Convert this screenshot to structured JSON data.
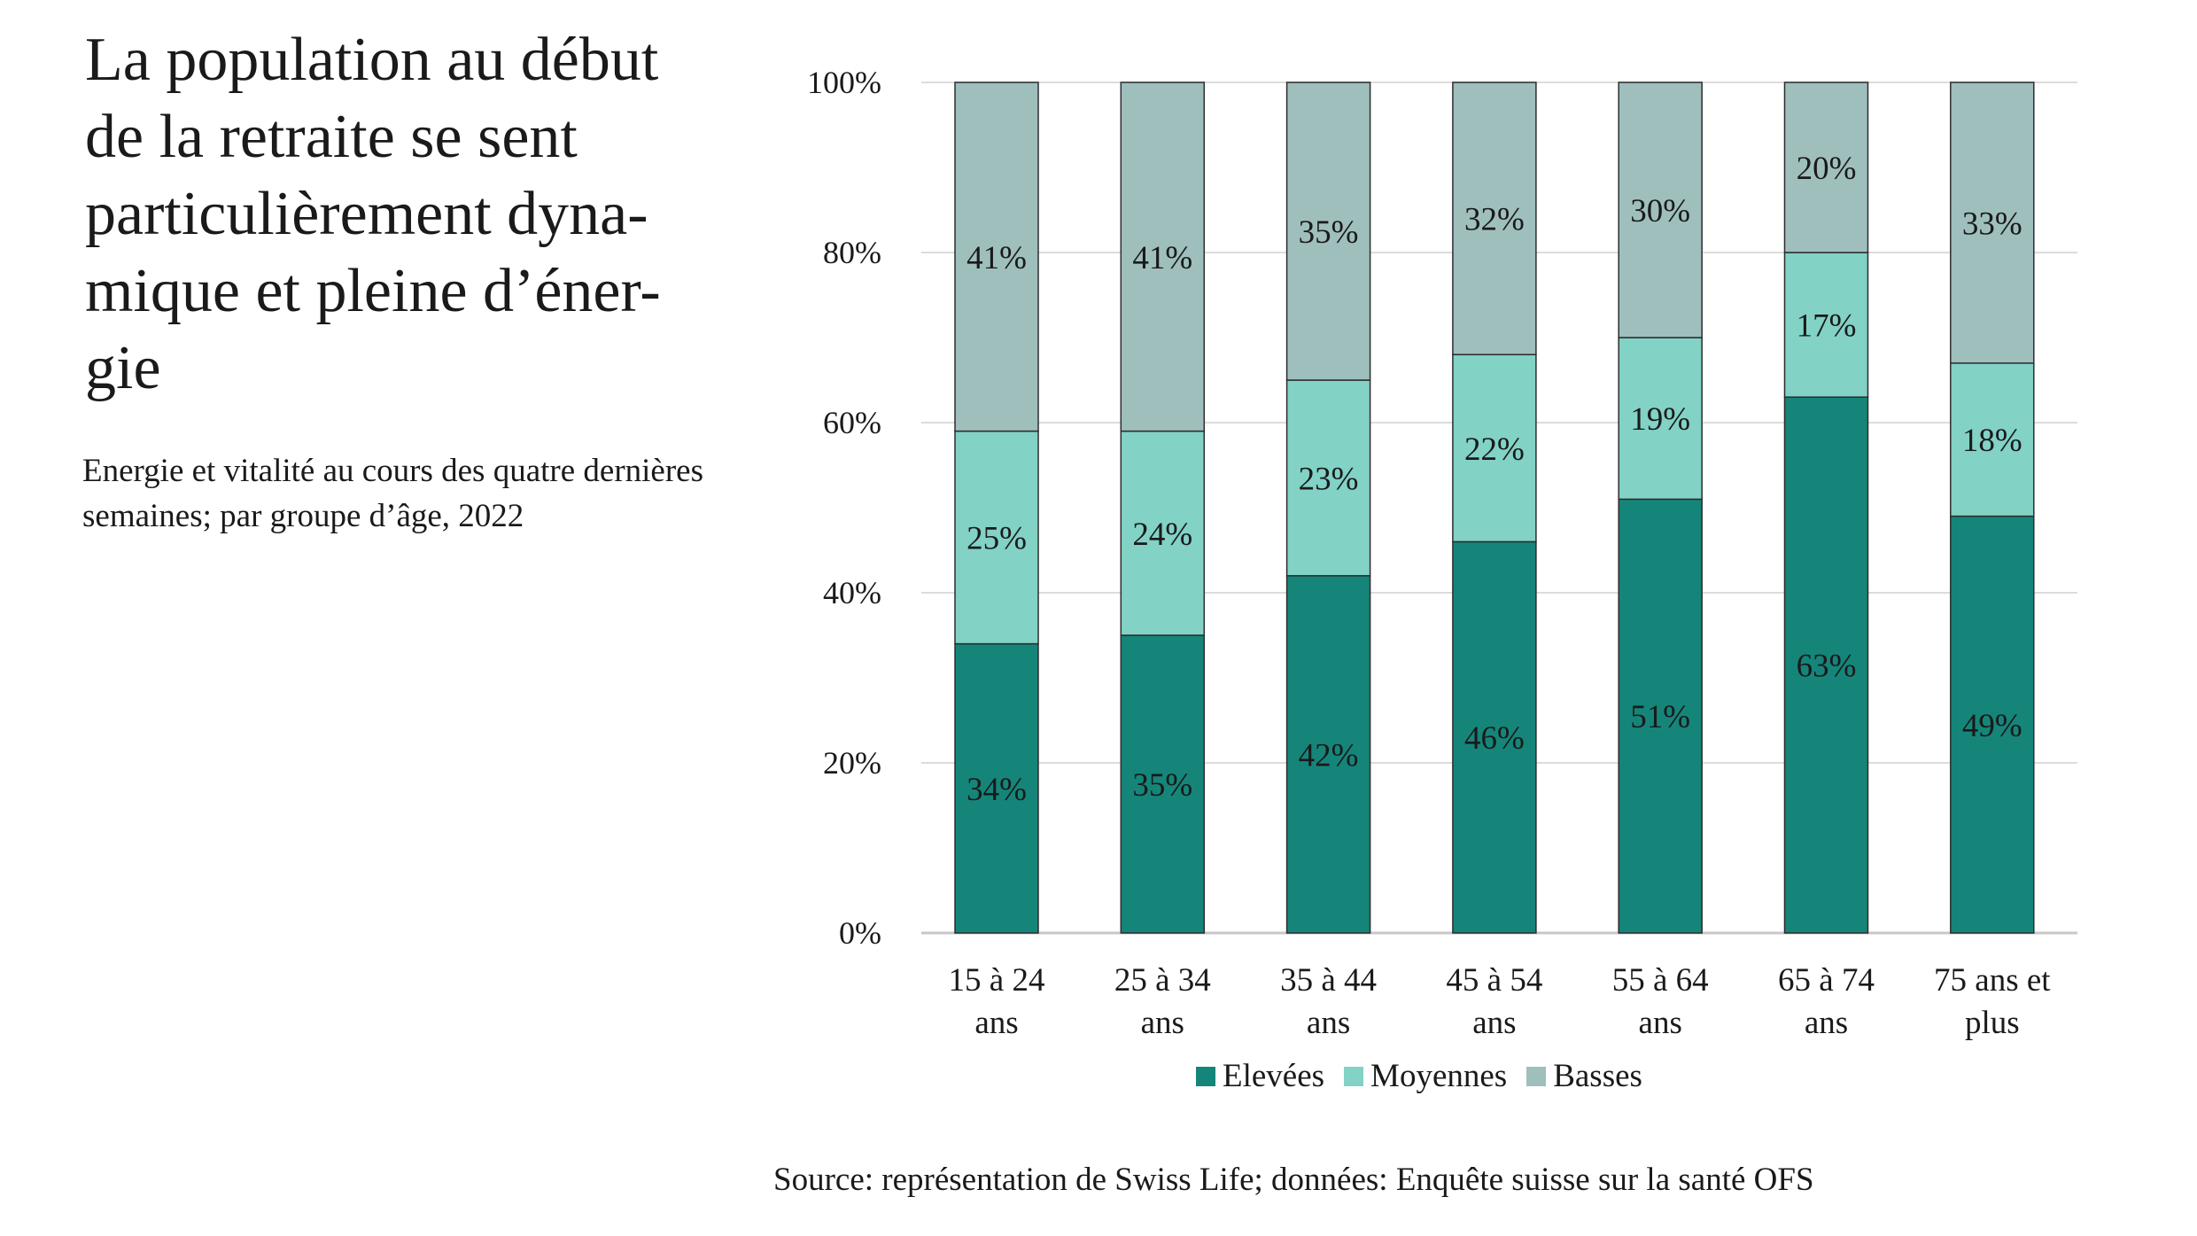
{
  "title_lines": [
    "La population au début",
    "de la retraite se sent",
    "particulièrement dyna-",
    "mique et pleine d’éner-",
    "gie"
  ],
  "subtitle_lines": [
    "Energie et vitalité au cours des quatre dernières",
    "semaines; par groupe d’âge, 2022"
  ],
  "source": "Source: représentation de Swiss Life; données: Enquête suisse sur la santé OFS",
  "chart_data": {
    "type": "bar",
    "stacked": true,
    "categories": [
      [
        "15 à 24",
        "ans"
      ],
      [
        "25 à 34",
        "ans"
      ],
      [
        "35 à 44",
        "ans"
      ],
      [
        "45 à 54",
        "ans"
      ],
      [
        "55 à 64",
        "ans"
      ],
      [
        "65 à 74",
        "ans"
      ],
      [
        "75 ans et",
        "plus"
      ]
    ],
    "series": [
      {
        "name": "Elevées",
        "color": "#15857a",
        "values": [
          34,
          35,
          42,
          46,
          51,
          63,
          49
        ]
      },
      {
        "name": "Moyennes",
        "color": "#82d2c6",
        "values": [
          25,
          24,
          23,
          22,
          19,
          17,
          18
        ]
      },
      {
        "name": "Basses",
        "color": "#9fbfbd",
        "values": [
          41,
          41,
          35,
          32,
          30,
          20,
          33
        ]
      }
    ],
    "ylim": [
      0,
      100
    ],
    "yticks": [
      "0%",
      "20%",
      "40%",
      "60%",
      "80%",
      "100%"
    ],
    "grid": true,
    "legend_position": "bottom"
  }
}
